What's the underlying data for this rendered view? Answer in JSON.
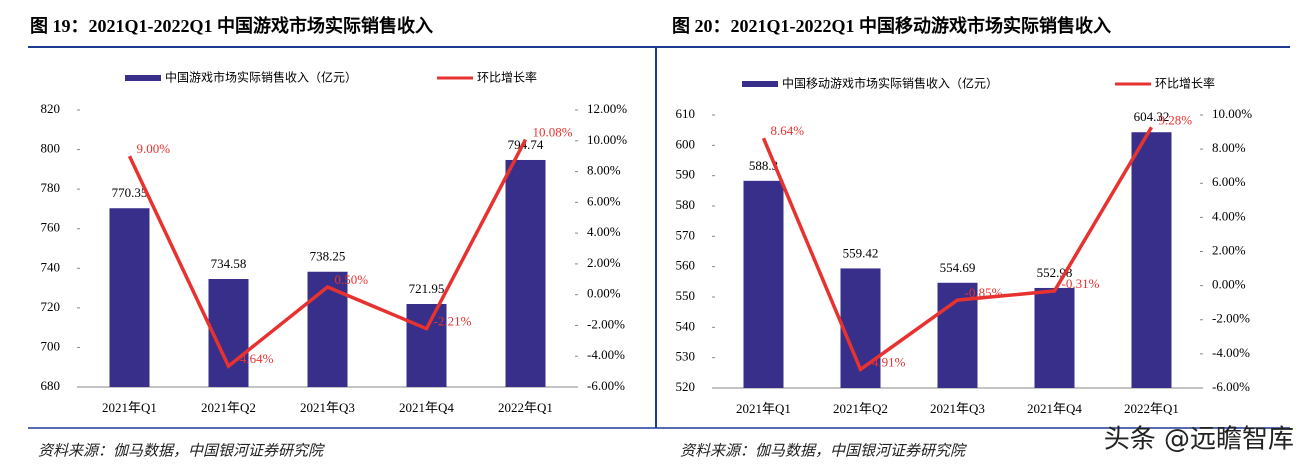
{
  "chart_data": [
    {
      "type": "bar",
      "title": "图 19：2021Q1-2022Q1 中国游戏市场实际销售收入",
      "source": "资料来源：伽马数据，中国银河证券研究院",
      "categories": [
        "2021年Q1",
        "2021年Q2",
        "2021年Q3",
        "2021年Q4",
        "2022年Q1"
      ],
      "series": [
        {
          "name": "中国游戏市场实际销售收入（亿元）",
          "color": "#372f8a",
          "values": [
            770.35,
            734.58,
            738.25,
            721.95,
            794.74
          ]
        },
        {
          "name": "环比增长率",
          "type": "line",
          "axis": "y2",
          "color": "#e8322f",
          "values": [
            9.0,
            -4.64,
            0.5,
            -2.21,
            10.08
          ],
          "value_labels": [
            "9.00%",
            "-4.64%",
            "0.50%",
            "-2.21%",
            "10.08%"
          ]
        }
      ],
      "ylim": [
        680,
        820
      ],
      "yticks": [
        680,
        700,
        720,
        740,
        760,
        780,
        800,
        820
      ],
      "y2lim": [
        -6,
        12
      ],
      "y2ticks": [
        {
          "value": -6,
          "label": "-6.00%"
        },
        {
          "value": -4,
          "label": "-4.00%"
        },
        {
          "value": -2,
          "label": "-2.00%"
        },
        {
          "value": 0,
          "label": "0.00%"
        },
        {
          "value": 2,
          "label": "2.00%"
        },
        {
          "value": 4,
          "label": "4.00%"
        },
        {
          "value": 6,
          "label": "6.00%"
        },
        {
          "value": 8,
          "label": "8.00%"
        },
        {
          "value": 10,
          "label": "10.00%"
        },
        {
          "value": 12,
          "label": "12.00%"
        }
      ]
    },
    {
      "type": "bar",
      "title": "图 20：2021Q1-2022Q1 中国移动游戏市场实际销售收入",
      "source": "资料来源：伽马数据，中国银河证券研究院",
      "categories": [
        "2021年Q1",
        "2021年Q2",
        "2021年Q3",
        "2021年Q4",
        "2022年Q1"
      ],
      "series": [
        {
          "name": "中国移动游戏市场实际销售收入（亿元）",
          "color": "#372f8a",
          "values": [
            588.3,
            559.42,
            554.69,
            552.98,
            604.32
          ]
        },
        {
          "name": "环比增长率",
          "type": "line",
          "axis": "y2",
          "color": "#e8322f",
          "values": [
            8.64,
            -4.91,
            -0.85,
            -0.31,
            9.28
          ],
          "value_labels": [
            "8.64%",
            "-4.91%",
            "-0.85%",
            "-0.31%",
            "9.28%"
          ]
        }
      ],
      "ylim": [
        520,
        610
      ],
      "yticks": [
        520,
        530,
        540,
        550,
        560,
        570,
        580,
        590,
        600,
        610
      ],
      "y2lim": [
        -6,
        10
      ],
      "y2ticks": [
        {
          "value": -6,
          "label": "-6.00%"
        },
        {
          "value": -4,
          "label": "-4.00%"
        },
        {
          "value": -2,
          "label": "-2.00%"
        },
        {
          "value": 0,
          "label": "0.00%"
        },
        {
          "value": 2,
          "label": "2.00%"
        },
        {
          "value": 4,
          "label": "4.00%"
        },
        {
          "value": 6,
          "label": "6.00%"
        },
        {
          "value": 8,
          "label": "8.00%"
        },
        {
          "value": 10,
          "label": "10.00%"
        }
      ]
    }
  ],
  "watermark": "头条 @远瞻智库"
}
